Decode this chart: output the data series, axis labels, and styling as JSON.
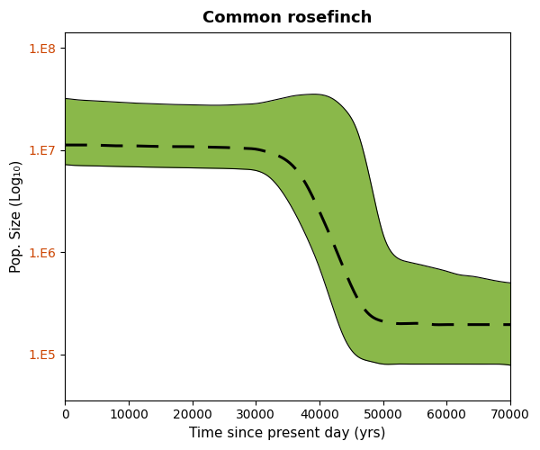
{
  "title": "Common rosefinch",
  "xlabel": "Time since present day (yrs)",
  "ylabel": "Pop. Size (Log₁₀)",
  "xlim": [
    0,
    70000
  ],
  "y_ticks": [
    100000,
    1000000,
    10000000,
    100000000
  ],
  "y_tick_labels": [
    "1.E5",
    "1.E6",
    "1.E7",
    "1.E8"
  ],
  "x_ticks": [
    0,
    10000,
    20000,
    30000,
    40000,
    50000,
    60000,
    70000
  ],
  "fill_color": "#8ab84a",
  "fill_alpha": 1.0,
  "line_color": "#000000",
  "background_color": "#ffffff",
  "tick_color": "#cc4400",
  "time": [
    0,
    1000,
    2000,
    4000,
    6000,
    8000,
    10000,
    13000,
    16000,
    19000,
    22000,
    25000,
    28000,
    30000,
    32000,
    34000,
    36000,
    38000,
    40000,
    42000,
    44000,
    46000,
    48000,
    50000,
    52000,
    54000,
    56000,
    58000,
    60000,
    62000,
    64000,
    66000,
    68000,
    70000
  ],
  "median": [
    11200000.0,
    11200000.0,
    11200000.0,
    11200000.0,
    11100000.0,
    11000000.0,
    11000000.0,
    10900000.0,
    10800000.0,
    10800000.0,
    10700000.0,
    10600000.0,
    10400000.0,
    10200000.0,
    9500000.0,
    8500000.0,
    6800000.0,
    4500000.0,
    2500000.0,
    1300000.0,
    650000.0,
    350000.0,
    240000.0,
    210000.0,
    200000.0,
    200000.0,
    200000.0,
    195000.0,
    195000.0,
    195000.0,
    195000.0,
    195000.0,
    195000.0,
    195000.0
  ],
  "upper": [
    32000000.0,
    31500000.0,
    31000000.0,
    30500000.0,
    30000000.0,
    29500000.0,
    29000000.0,
    28500000.0,
    28000000.0,
    27800000.0,
    27500000.0,
    27500000.0,
    28000000.0,
    28500000.0,
    30000000.0,
    32000000.0,
    34000000.0,
    35000000.0,
    35000000.0,
    32000000.0,
    25000000.0,
    15000000.0,
    5000000.0,
    1500000.0,
    900000.0,
    800000.0,
    750000.0,
    700000.0,
    650000.0,
    600000.0,
    580000.0,
    550000.0,
    520000.0,
    500000.0
  ],
  "lower": [
    7200000.0,
    7100000.0,
    7050000.0,
    7000000.0,
    6950000.0,
    6900000.0,
    6850000.0,
    6800000.0,
    6750000.0,
    6700000.0,
    6650000.0,
    6600000.0,
    6500000.0,
    6300000.0,
    5500000.0,
    4000000.0,
    2500000.0,
    1400000.0,
    700000.0,
    300000.0,
    140000.0,
    95000.0,
    85000.0,
    80000.0,
    80000.0,
    80000.0,
    80000.0,
    80000.0,
    80000.0,
    80000.0,
    80000.0,
    80000.0,
    80000.0,
    78000.0
  ]
}
